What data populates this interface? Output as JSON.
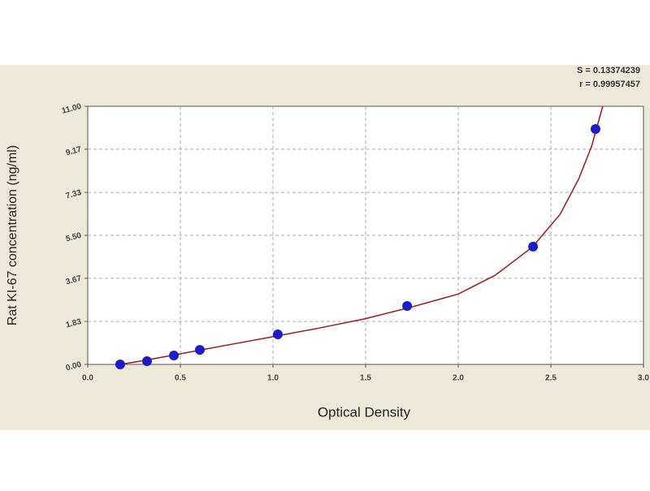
{
  "chart_data": {
    "type": "scatter",
    "annotations": [
      "S = 0.13374239",
      "r = 0.99957457"
    ],
    "x_label": "Optical Density",
    "y_label": "Rat KI-67 concentration (ng/ml)",
    "x": [
      0.175,
      0.32,
      0.465,
      0.605,
      1.026,
      1.724,
      2.404,
      2.741
    ],
    "values": [
      0.0,
      0.14,
      0.38,
      0.62,
      1.28,
      2.49,
      5.02,
      10.03
    ],
    "color": "#1c1cc8",
    "fit": {
      "color": "#a01818",
      "x": [
        0.175,
        0.3,
        0.5,
        0.75,
        1.0,
        1.25,
        1.5,
        1.75,
        2.0,
        2.2,
        2.4,
        2.55,
        2.65,
        2.72,
        2.78
      ],
      "values": [
        0.0,
        0.16,
        0.45,
        0.82,
        1.18,
        1.55,
        1.95,
        2.45,
        3.0,
        3.8,
        5.0,
        6.4,
        7.9,
        9.3,
        11.0
      ]
    },
    "xlim": [
      0,
      3
    ],
    "ylim": [
      0,
      11
    ],
    "xticks": [
      {
        "value": 0,
        "label": "0.0"
      },
      0.5,
      {
        "value": 1,
        "label": "1.0"
      },
      1.5,
      {
        "value": 2,
        "label": "2.0"
      },
      2.5,
      {
        "value": 3,
        "label": "3.0"
      }
    ],
    "yticks": [
      {
        "value": 0,
        "label": "0.00"
      },
      1.83,
      3.67,
      {
        "value": 5.5,
        "label": "5.50"
      },
      7.33,
      9.17,
      {
        "value": 11,
        "label": "11.00"
      }
    ],
    "grid": true
  }
}
